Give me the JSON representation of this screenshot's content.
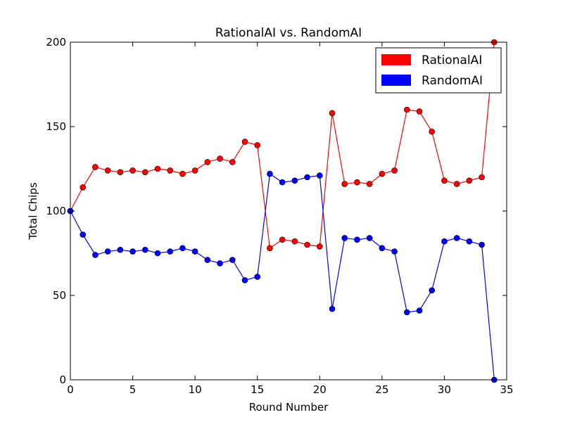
{
  "chart_data": {
    "type": "line",
    "title": "RationalAI vs. RandomAI",
    "xlabel": "Round Number",
    "ylabel": "Total Chips",
    "xlim": [
      0,
      35
    ],
    "ylim": [
      0,
      200
    ],
    "xticks": [
      "0",
      "5",
      "10",
      "15",
      "20",
      "25",
      "30",
      "35"
    ],
    "yticks": [
      "0",
      "50",
      "100",
      "150",
      "200"
    ],
    "grid": false,
    "legend_position": "top-right",
    "x": [
      0,
      1,
      2,
      3,
      4,
      5,
      6,
      7,
      8,
      9,
      10,
      11,
      12,
      13,
      14,
      15,
      16,
      17,
      18,
      19,
      20,
      21,
      22,
      23,
      24,
      25,
      26,
      27,
      28,
      29,
      30,
      31,
      32,
      33,
      34
    ],
    "series": [
      {
        "name": "RationalAI",
        "color": "#ff0000",
        "values": [
          100,
          114,
          126,
          124,
          123,
          124,
          123,
          125,
          124,
          122,
          124,
          129,
          131,
          129,
          141,
          139,
          78,
          83,
          82,
          80,
          79,
          158,
          116,
          117,
          116,
          122,
          124,
          160,
          159,
          147,
          118,
          116,
          118,
          120,
          200
        ]
      },
      {
        "name": "RandomAI",
        "color": "#0000ff",
        "values": [
          100,
          86,
          74,
          76,
          77,
          76,
          77,
          75,
          76,
          78,
          76,
          71,
          69,
          71,
          59,
          61,
          122,
          117,
          118,
          120,
          121,
          42,
          84,
          83,
          84,
          78,
          76,
          40,
          41,
          53,
          82,
          84,
          82,
          80,
          0
        ]
      }
    ]
  }
}
